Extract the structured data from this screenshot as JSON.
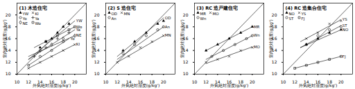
{
  "chart_data": [
    {
      "type": "scatter",
      "title": "(1) 木造住宅",
      "x_label": "外気絶対湿度(g/kg')",
      "y_label": "室内絶対湿度(g/kg')",
      "xlim": [
        10,
        22
      ],
      "ylim": [
        10,
        22
      ],
      "xticks": [
        10,
        12,
        14,
        16,
        18,
        20
      ],
      "yticks": [
        10,
        12,
        14,
        16,
        18,
        20
      ],
      "grid": false,
      "legend": "top-left",
      "reference_line": {
        "x": [
          10,
          22
        ],
        "y": [
          10,
          22
        ]
      },
      "series": [
        {
          "name": "YW",
          "color": "#000000",
          "marker": "triangle-filled",
          "x": [
            14,
            15,
            16,
            17,
            18,
            19
          ],
          "y": [
            14.5,
            15.5,
            16,
            17,
            18,
            18.5
          ],
          "fit": {
            "x": [
              12,
              20
            ],
            "y": [
              12.5,
              19
            ]
          }
        },
        {
          "name": "KI",
          "color": "#000000",
          "marker": "times",
          "x": [
            12,
            14,
            16,
            18,
            20
          ],
          "y": [
            11,
            12,
            13,
            14,
            15
          ],
          "fit": {
            "x": [
              12,
              20
            ],
            "y": [
              11,
              15
            ]
          }
        },
        {
          "name": "Yo",
          "color": "#000000",
          "marker": "circle-open",
          "x": [
            12,
            14,
            16,
            18
          ],
          "y": [
            11.5,
            13,
            14,
            15.5
          ],
          "fit": {
            "x": [
              12,
              19
            ],
            "y": [
              11.5,
              16
            ]
          }
        },
        {
          "name": "Ya",
          "color": "#000000",
          "marker": "plus",
          "x": [
            13,
            15,
            17,
            19
          ],
          "y": [
            13,
            14.5,
            16,
            17
          ],
          "fit": {
            "x": [
              12,
              20
            ],
            "y": [
              12.5,
              17.5
            ]
          }
        },
        {
          "name": "NE",
          "color": "#000000",
          "marker": "diamond-open",
          "x": [
            14,
            16,
            18,
            20
          ],
          "y": [
            14,
            15,
            16,
            16.5
          ],
          "fit": {
            "x": [
              12,
              20
            ],
            "y": [
              13,
              16.5
            ]
          }
        },
        {
          "name": "Wo",
          "color": "#000000",
          "marker": "square-open",
          "x": [
            15,
            17,
            19,
            20
          ],
          "y": [
            15.5,
            16.5,
            17.5,
            18
          ],
          "fit": {
            "x": [
              13,
              20
            ],
            "y": [
              14.5,
              18
            ]
          }
        }
      ]
    },
    {
      "type": "scatter",
      "title": "(2) S 造住宅",
      "x_label": "外気絶対湿度(g/kg')",
      "y_label": "室内絶対湿度(g/kg')",
      "xlim": [
        10,
        22
      ],
      "ylim": [
        10,
        22
      ],
      "xticks": [
        10,
        12,
        14,
        16,
        18,
        20
      ],
      "yticks": [
        10,
        12,
        14,
        16,
        18,
        20
      ],
      "grid": false,
      "legend": "top-left",
      "reference_line": {
        "x": [
          10,
          22
        ],
        "y": [
          10,
          22
        ]
      },
      "series": [
        {
          "name": "OD",
          "color": "#000000",
          "marker": "triangle-filled",
          "x": [
            13,
            15,
            17,
            19,
            20
          ],
          "y": [
            14,
            15.5,
            17,
            18.5,
            19
          ],
          "fit": {
            "x": [
              12,
              20
            ],
            "y": [
              13,
              19.5
            ]
          }
        },
        {
          "name": "MN",
          "color": "#000000",
          "marker": "times",
          "x": [
            12,
            14,
            16,
            18,
            20
          ],
          "y": [
            12,
            13,
            14.5,
            15.5,
            16.5
          ],
          "fit": {
            "x": [
              12,
              20
            ],
            "y": [
              12,
              16.5
            ]
          }
        },
        {
          "name": "An",
          "color": "#000000",
          "marker": "circle-open",
          "x": [
            13,
            15,
            17,
            19,
            20
          ],
          "y": [
            13.5,
            15,
            16.5,
            17.5,
            18
          ],
          "fit": {
            "x": [
              12,
              20
            ],
            "y": [
              12.5,
              18
            ]
          }
        }
      ]
    },
    {
      "type": "scatter",
      "title": "(3) RC 造戸建住宅",
      "x_label": "外気絶対湿度(g/kg')",
      "y_label": "室内絶対湿度(g/kg')",
      "xlim": [
        10,
        22
      ],
      "ylim": [
        10,
        22
      ],
      "xticks": [
        10,
        12,
        14,
        16,
        18,
        20
      ],
      "yticks": [
        10,
        12,
        14,
        16,
        18,
        20
      ],
      "grid": false,
      "legend": "top-left",
      "reference_line": {
        "x": [
          10,
          22
        ],
        "y": [
          10,
          22
        ]
      },
      "series": [
        {
          "name": "MR",
          "color": "#000000",
          "marker": "triangle-filled",
          "x": [
            12,
            14,
            16,
            18,
            20
          ],
          "y": [
            14,
            15,
            16,
            17,
            18
          ],
          "fit": {
            "x": [
              12,
              20
            ],
            "y": [
              14,
              18
            ]
          }
        },
        {
          "name": "MO",
          "color": "#000000",
          "marker": "times",
          "x": [
            12,
            14,
            16,
            18,
            20
          ],
          "y": [
            12,
            12.5,
            13,
            14,
            14.5
          ],
          "fit": {
            "x": [
              12,
              20
            ],
            "y": [
              11.8,
              14.6
            ]
          }
        },
        {
          "name": "Wn",
          "color": "#000000",
          "marker": "circle-open",
          "x": [
            13,
            15,
            17,
            19,
            20
          ],
          "y": [
            13,
            14,
            15,
            16,
            16.5
          ],
          "fit": {
            "x": [
              12,
              20
            ],
            "y": [
              12.5,
              16.5
            ]
          }
        }
      ]
    },
    {
      "type": "scatter",
      "title": "(4) RC 造集合住宅",
      "x_label": "外気絶対湿度(g/kg')",
      "y_label": "室内絶対湿度(g/kg')",
      "xlim": [
        10,
        22
      ],
      "ylim": [
        10,
        22
      ],
      "xticks": [
        10,
        12,
        14,
        16,
        18,
        20
      ],
      "yticks": [
        10,
        12,
        14,
        16,
        18,
        20
      ],
      "grid": false,
      "legend": "top-left",
      "reference_line": {
        "x": [
          10,
          22
        ],
        "y": [
          10,
          22
        ]
      },
      "series": [
        {
          "name": "NO",
          "color": "#000000",
          "marker": "triangle-filled",
          "x": [
            14,
            16,
            18,
            20
          ],
          "y": [
            15,
            16,
            17,
            17.5
          ],
          "fit": {
            "x": [
              13,
              20
            ],
            "y": [
              14.5,
              17.5
            ]
          }
        },
        {
          "name": "YS",
          "color": "#000000",
          "marker": "times",
          "x": [
            14,
            16,
            18,
            20
          ],
          "y": [
            16,
            17,
            18.5,
            19
          ],
          "fit": {
            "x": [
              13,
              20
            ],
            "y": [
              15.5,
              19.2
            ]
          }
        },
        {
          "name": "ST",
          "color": "#000000",
          "marker": "circle-open",
          "x": [
            14,
            16,
            18,
            20
          ],
          "y": [
            15,
            16.5,
            17.5,
            18
          ],
          "fit": {
            "x": [
              13,
              20
            ],
            "y": [
              14.5,
              18.2
            ]
          }
        },
        {
          "name": "FJ",
          "color": "#000000",
          "marker": "square-open",
          "x": [
            12,
            14,
            16,
            18,
            20
          ],
          "y": [
            11,
            11.5,
            12,
            12.5,
            13
          ],
          "fit": {
            "x": [
              12,
              20
            ],
            "y": [
              11,
              13
            ]
          }
        }
      ]
    }
  ]
}
